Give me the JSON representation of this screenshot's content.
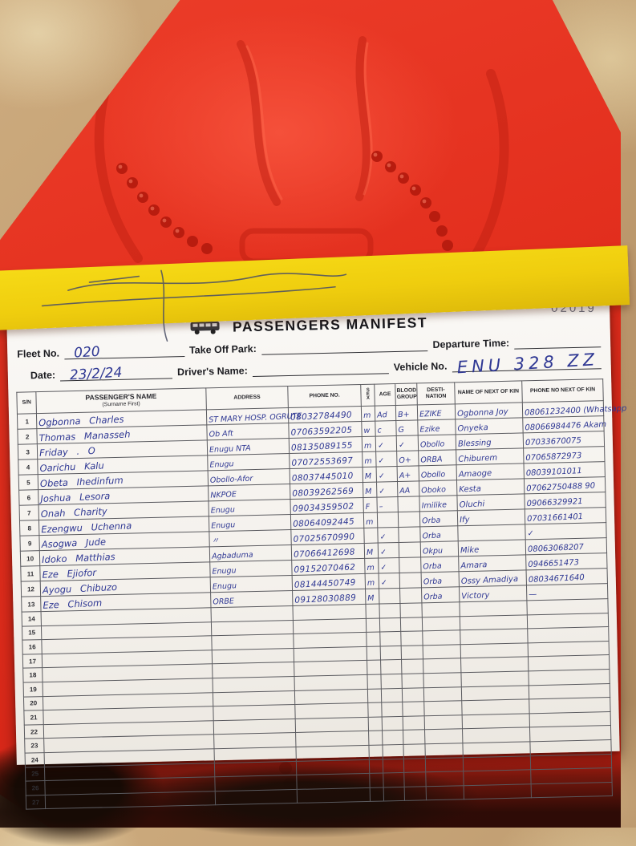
{
  "colors": {
    "tray_red": "#e22e1d",
    "note_yellow": "#efcd0e",
    "paper": "#f8f6f3",
    "ink_blue": "#2e3793"
  },
  "form": {
    "serial_number": "02019",
    "title": "PASSENGERS MANIFEST",
    "fields": {
      "fleet_label": "Fleet No.",
      "fleet_value": "020",
      "takeoff_label": "Take Off Park:",
      "takeoff_value": "",
      "departure_label": "Departure Time:",
      "departure_value": "",
      "date_label": "Date:",
      "date_value": "23/2/24",
      "driver_label": "Driver's Name:",
      "driver_value": "",
      "vehicle_label": "Vehicle No.",
      "vehicle_value": "ENU 328 ZZ"
    },
    "table": {
      "columns": {
        "sn": "S/N",
        "name": "PASSENGER'S NAME",
        "name_sub": "(Surname First)",
        "address": "ADDRESS",
        "phone": "PHONE NO.",
        "sex": "SEX",
        "age": "AGE",
        "blood": "BLOOD GROUP",
        "dest": "DESTI- NATION",
        "kin": "NAME OF NEXT OF KIN",
        "kin_phone": "PHONE NO NEXT OF KIN"
      },
      "cell_keys": [
        "name",
        "address",
        "phone",
        "sex",
        "age",
        "blood",
        "dest",
        "kin",
        "kin_phone"
      ],
      "rows": [
        {
          "sn": "1",
          "name": "Ogbonna Charles",
          "address": "ST MARY HOSP. OGRUTE",
          "phone": "08032784490",
          "sex": "m",
          "age": "Ad",
          "blood": "B+",
          "dest": "EZIKE",
          "kin": "Ogbonna Joy",
          "kin_phone": "08061232400 (Whatsapp"
        },
        {
          "sn": "2",
          "name": "Thomas Manasseh",
          "address": "Ob Aft",
          "phone": "07063592205",
          "sex": "w",
          "age": "c",
          "blood": "G",
          "dest": "Ezike",
          "kin": "Onyeka",
          "kin_phone": "08066984476 Akam"
        },
        {
          "sn": "3",
          "name": "Friday . O",
          "address": "Enugu NTA",
          "phone": "08135089155",
          "sex": "m",
          "age": "✓",
          "blood": "✓",
          "dest": "Obollo",
          "kin": "Blessing",
          "kin_phone": "07033670075"
        },
        {
          "sn": "4",
          "name": "Oarichu Kalu",
          "address": "Enugu",
          "phone": "07072553697",
          "sex": "m",
          "age": "✓",
          "blood": "O+",
          "dest": "ORBA",
          "kin": "Chiburem",
          "kin_phone": "07065872973"
        },
        {
          "sn": "5",
          "name": "Obeta Ihedinfum",
          "address": "Obollo-Afor",
          "phone": "08037445010",
          "sex": "M",
          "age": "✓",
          "blood": "A+",
          "dest": "Obollo",
          "kin": "Amaoge",
          "kin_phone": "08039101011"
        },
        {
          "sn": "6",
          "name": "Joshua Lesora",
          "address": "NKPOE",
          "phone": "08039262569",
          "sex": "M",
          "age": "✓",
          "blood": "AA",
          "dest": "Oboko",
          "kin": "Kesta",
          "kin_phone": "07062750488 90"
        },
        {
          "sn": "7",
          "name": "Onah Charity",
          "address": "Enugu",
          "phone": "09034359502",
          "sex": "F",
          "age": "–",
          "blood": "",
          "dest": "Imilike",
          "kin": "Oluchi",
          "kin_phone": "09066329921"
        },
        {
          "sn": "8",
          "name": "Ezengwu Uchenna",
          "address": "Enugu",
          "phone": "08064092445",
          "sex": "m",
          "age": "",
          "blood": "",
          "dest": "Orba",
          "kin": "Ify",
          "kin_phone": "07031661401"
        },
        {
          "sn": "9",
          "name": "Asogwa Jude",
          "address": "〃",
          "phone": "07025670990",
          "sex": "",
          "age": "✓",
          "blood": "",
          "dest": "Orba",
          "kin": "",
          "kin_phone": "✓"
        },
        {
          "sn": "10",
          "name": "Idoko Matthias",
          "address": "Agbaduma",
          "phone": "07066412698",
          "sex": "M",
          "age": "✓",
          "blood": "",
          "dest": "Okpu",
          "kin": "Mike",
          "kin_phone": "08063068207"
        },
        {
          "sn": "11",
          "name": "Eze Ejiofor",
          "address": "Enugu",
          "phone": "09152070462",
          "sex": "m",
          "age": "✓",
          "blood": "",
          "dest": "Orba",
          "kin": "Amara",
          "kin_phone": "0946651473"
        },
        {
          "sn": "12",
          "name": "Ayogu Chibuzo",
          "address": "Enugu",
          "phone": "08144450749",
          "sex": "m",
          "age": "✓",
          "blood": "",
          "dest": "Orba",
          "kin": "Ossy Amadiya",
          "kin_phone": "08034671640"
        },
        {
          "sn": "13",
          "name": "Eze Chisom",
          "address": "ORBE",
          "phone": "09128030889",
          "sex": "M",
          "age": "",
          "blood": "",
          "dest": "Orba",
          "kin": "Victory",
          "kin_phone": "—"
        },
        {
          "sn": "14"
        },
        {
          "sn": "15"
        },
        {
          "sn": "16"
        },
        {
          "sn": "17"
        },
        {
          "sn": "18"
        },
        {
          "sn": "19"
        },
        {
          "sn": "20"
        },
        {
          "sn": "21"
        },
        {
          "sn": "22"
        },
        {
          "sn": "23"
        },
        {
          "sn": "24"
        },
        {
          "sn": "25"
        },
        {
          "sn": "26"
        },
        {
          "sn": "27"
        }
      ]
    }
  }
}
